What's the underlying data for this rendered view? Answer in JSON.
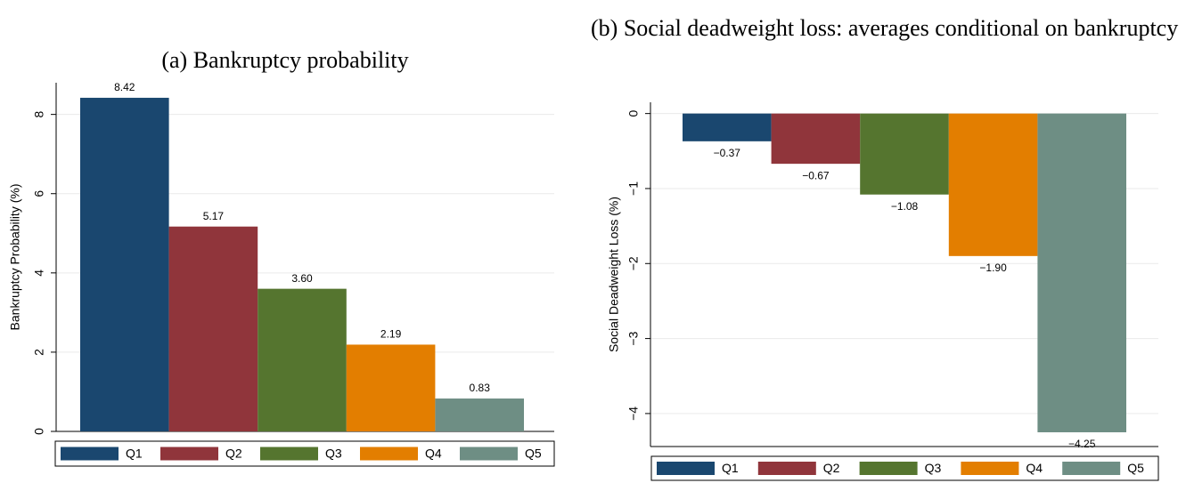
{
  "chart_data": [
    {
      "type": "bar",
      "title": "(a) Bankruptcy probability",
      "y_label": "Bankruptcy Probability (%)",
      "categories": [
        "Q1",
        "Q2",
        "Q3",
        "Q4",
        "Q5"
      ],
      "colors": [
        "#1a476f",
        "#90353b",
        "#55752f",
        "#e37e00",
        "#6e8e84"
      ],
      "values": [
        8.42,
        5.17,
        3.6,
        2.19,
        0.83
      ],
      "value_labels": [
        "8.42",
        "5.17",
        "3.60",
        "2.19",
        "0.83"
      ],
      "ylim": [
        0,
        8.8
      ],
      "yticks": [
        0,
        2,
        4,
        6,
        8
      ],
      "grid": true,
      "legend": "bottom"
    },
    {
      "type": "bar",
      "title": "(b) Social deadweight loss: averages conditional on bankruptcy",
      "y_label": "Social Deadweight Loss (%)",
      "categories": [
        "Q1",
        "Q2",
        "Q3",
        "Q4",
        "Q5"
      ],
      "colors": [
        "#1a476f",
        "#90353b",
        "#55752f",
        "#e37e00",
        "#6e8e84"
      ],
      "values": [
        -0.37,
        -0.67,
        -1.08,
        -1.9,
        -4.25
      ],
      "value_labels": [
        "−0.37",
        "−0.67",
        "−1.08",
        "−1.90",
        "−4.25"
      ],
      "ylim": [
        -4.44,
        0.15
      ],
      "yticks": [
        {
          "value": -4,
          "label": "−4"
        },
        {
          "value": -3,
          "label": "−3"
        },
        {
          "value": -2,
          "label": "−2"
        },
        {
          "value": -1,
          "label": "−1"
        },
        0
      ],
      "grid": true,
      "legend": "bottom"
    }
  ]
}
